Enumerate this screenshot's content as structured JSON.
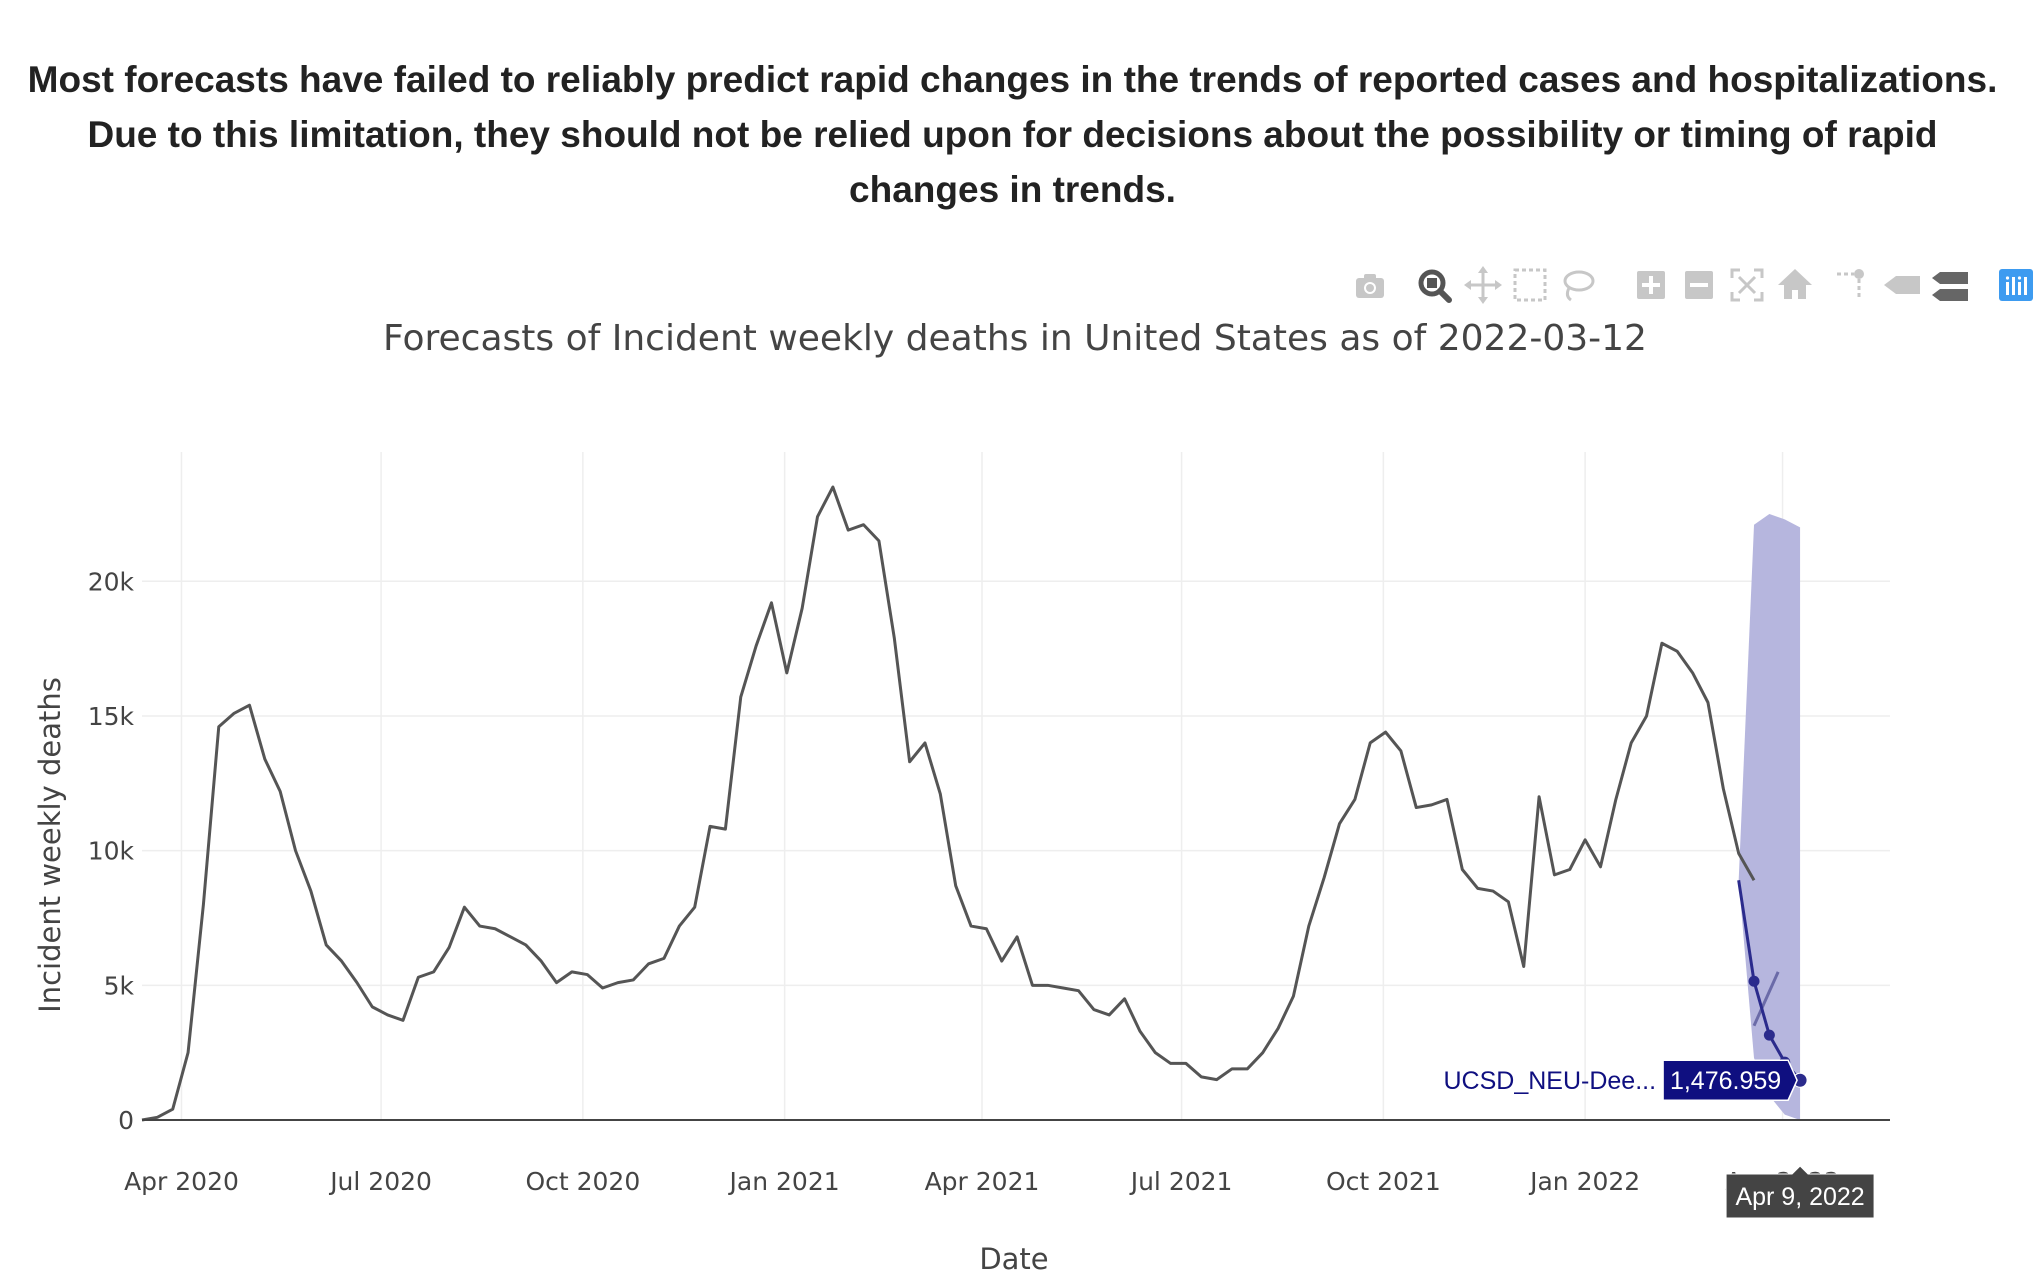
{
  "banner": {
    "line1": "Most forecasts have failed to reliably predict rapid changes in the trends of reported cases and hospitalizations.",
    "line2": "Due to this limitation, they should not be relied upon for decisions about the possibility or timing of rapid",
    "line3": "changes in trends."
  },
  "modebar": {
    "buttons": [
      "camera-icon",
      "zoom-icon",
      "pan-icon",
      "box-select-icon",
      "lasso-select-icon",
      "zoom-in-icon",
      "zoom-out-icon",
      "autoscale-icon",
      "reset-axes-icon",
      "spike-lines-icon",
      "hover-closest-icon",
      "hover-compare-icon",
      "plotly-logo-icon"
    ],
    "active": "zoom-icon"
  },
  "colors": {
    "observed": "#555555",
    "forecast": "#2b2b8c",
    "interval": "#b2b2dc",
    "tooltip_bg": "#0f0f80",
    "date_tooltip_bg": "#444444"
  },
  "chart_data": {
    "type": "line",
    "title": "Forecasts of Incident weekly deaths in United States as of 2022-03-12",
    "xlabel": "Date",
    "ylabel": "Incident weekly deaths",
    "x_tick_labels": [
      "Apr 2020",
      "Jul 2020",
      "Oct 2020",
      "Jan 2021",
      "Apr 2021",
      "Jul 2021",
      "Oct 2021",
      "Jan 2022",
      "Apr 2022"
    ],
    "x_tick_dates": [
      "2020-04-01",
      "2020-07-01",
      "2020-10-01",
      "2021-01-01",
      "2021-04-01",
      "2021-07-01",
      "2021-10-01",
      "2022-01-01",
      "2022-04-01"
    ],
    "y_ticks": [
      0,
      5000,
      10000,
      15000,
      20000
    ],
    "y_tick_labels": [
      "0",
      "5k",
      "10k",
      "15k",
      "20k"
    ],
    "xlim": [
      "2020-03-14",
      "2022-05-20"
    ],
    "ylim": [
      0,
      24800
    ],
    "grid": true,
    "observed": {
      "start_date": "2020-03-14",
      "interval_days": 7,
      "values": [
        0,
        100,
        400,
        2500,
        8000,
        14600,
        15100,
        15400,
        13400,
        12200,
        10000,
        8500,
        6500,
        5900,
        5100,
        4200,
        3900,
        3700,
        5300,
        5500,
        6400,
        7900,
        7200,
        7100,
        6800,
        6500,
        5900,
        5100,
        5500,
        5400,
        4900,
        5100,
        5200,
        5800,
        6000,
        7200,
        7900,
        10900,
        10800,
        15700,
        17600,
        19200,
        16600,
        19000,
        22400,
        23500,
        21900,
        22100,
        21500,
        17900,
        13300,
        14000,
        12100,
        8700,
        7200,
        7100,
        5900,
        6800,
        5000,
        5000,
        4900,
        4800,
        4100,
        3900,
        4500,
        3300,
        2500,
        2100,
        2100,
        1600,
        1500,
        1900,
        1900,
        2500,
        3400,
        4600,
        7200,
        9000,
        11000,
        11900,
        14000,
        14400,
        13700,
        11600,
        11700,
        11900,
        9300,
        8600,
        8500,
        8100,
        5700,
        12000,
        9100,
        9300,
        10400,
        9400,
        11900,
        14000,
        15000,
        17700,
        17400,
        16600,
        15500,
        12300,
        9900,
        8900
      ]
    },
    "forecasts": [
      {
        "name": "UCSD_NEU-DeepGLEAM",
        "dates": [
          "2022-03-12",
          "2022-03-19",
          "2022-03-26",
          "2022-04-02",
          "2022-04-09"
        ],
        "median": [
          8900,
          5150,
          3150,
          2150,
          1476.959
        ],
        "lower": [
          8900,
          2300,
          900,
          200,
          0
        ],
        "upper": [
          8900,
          22100,
          22500,
          22300,
          22000
        ]
      }
    ],
    "secondary_forecast_segment": {
      "dates": [
        "2022-03-19",
        "2022-03-30"
      ],
      "values": [
        3500,
        5500
      ]
    },
    "hover": {
      "series_label": "UCSD_NEU-Dee...",
      "value_label": "1,476.959",
      "date_label": "Apr 9, 2022",
      "date": "2022-04-09",
      "value": 1476.959
    }
  }
}
